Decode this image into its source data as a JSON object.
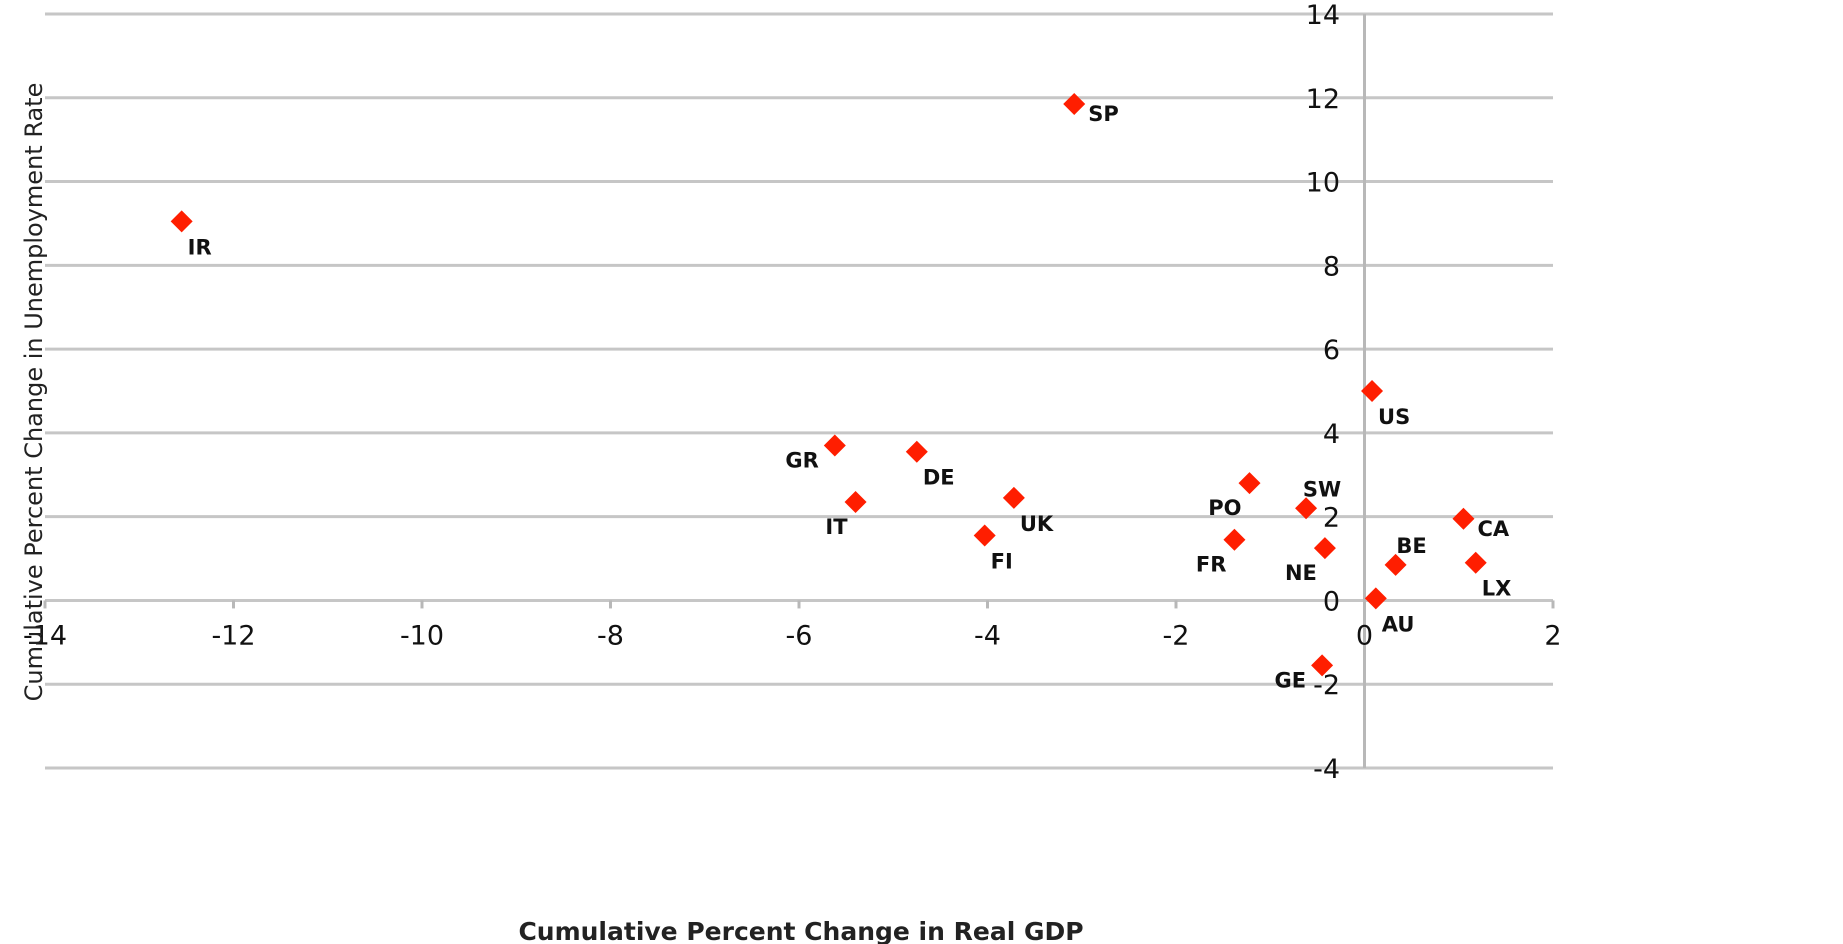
{
  "chart_data": {
    "type": "scatter",
    "title": "",
    "xlabel": "Cumulative Percent Change in Real GDP",
    "ylabel": "Cumulative Percent Change in Unemployment Rate",
    "xlim": [
      -14,
      2
    ],
    "ylim": [
      -4,
      14
    ],
    "x_ticks": [
      -14,
      -12,
      -10,
      -8,
      -6,
      -4,
      -2,
      0,
      2
    ],
    "y_ticks": [
      -4,
      -2,
      0,
      2,
      4,
      6,
      8,
      10,
      12,
      14
    ],
    "grid": "horizontal",
    "legend": "none",
    "marker_color": "#ff1e00",
    "points": [
      {
        "label": "IR",
        "x": -12.55,
        "y": 9.05,
        "label_pos": "below-right"
      },
      {
        "label": "SP",
        "x": -3.08,
        "y": 11.85,
        "label_pos": "right"
      },
      {
        "label": "US",
        "x": 0.08,
        "y": 5.0,
        "label_pos": "below-right"
      },
      {
        "label": "GR",
        "x": -5.62,
        "y": 3.7,
        "label_pos": "left"
      },
      {
        "label": "DE",
        "x": -4.75,
        "y": 3.55,
        "label_pos": "below-right"
      },
      {
        "label": "IT",
        "x": -5.4,
        "y": 2.35,
        "label_pos": "below-left"
      },
      {
        "label": "UK",
        "x": -3.72,
        "y": 2.45,
        "label_pos": "below-right"
      },
      {
        "label": "FI",
        "x": -4.03,
        "y": 1.55,
        "label_pos": "below-right"
      },
      {
        "label": "PO",
        "x": -1.22,
        "y": 2.8,
        "label_pos": "below-left"
      },
      {
        "label": "SW",
        "x": -0.62,
        "y": 2.2,
        "label_pos": "above"
      },
      {
        "label": "FR",
        "x": -1.38,
        "y": 1.45,
        "label_pos": "below-left"
      },
      {
        "label": "NE",
        "x": -0.42,
        "y": 1.25,
        "label_pos": "below-left"
      },
      {
        "label": "CA",
        "x": 1.05,
        "y": 1.95,
        "label_pos": "right"
      },
      {
        "label": "BE",
        "x": 0.33,
        "y": 0.85,
        "label_pos": "above"
      },
      {
        "label": "LX",
        "x": 1.18,
        "y": 0.9,
        "label_pos": "below-right"
      },
      {
        "label": "AU",
        "x": 0.12,
        "y": 0.05,
        "label_pos": "below-right"
      },
      {
        "label": "GE",
        "x": -0.45,
        "y": -1.55,
        "label_pos": "left"
      }
    ]
  }
}
